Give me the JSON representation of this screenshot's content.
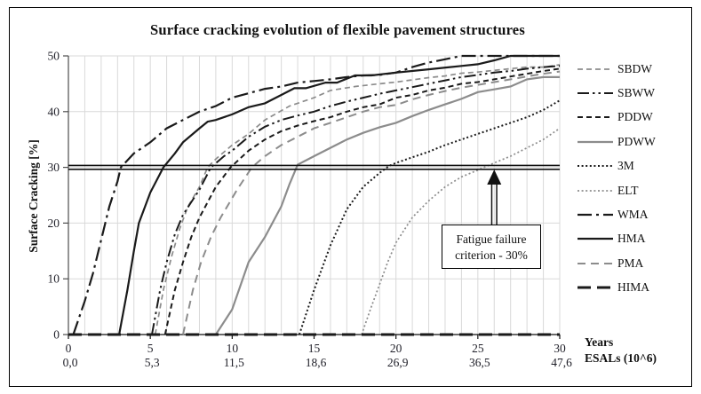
{
  "chart_data": {
    "type": "line",
    "title": "Surface cracking evolution of flexible pavement structures",
    "ylabel": "Surface Cracking [%]",
    "xlabel_primary": "Years",
    "xlabel_secondary": "ESALs (10^6)",
    "xlim": [
      0,
      30
    ],
    "ylim": [
      0,
      50
    ],
    "grid": true,
    "legend_position": "right",
    "x_ticks_years": [
      "0",
      "5",
      "10",
      "15",
      "20",
      "25",
      "30"
    ],
    "x_ticks_esals": [
      "0,0",
      "5,3",
      "11,5",
      "18,6",
      "26,9",
      "36,5",
      "47,6"
    ],
    "y_ticks": [
      "0",
      "10",
      "20",
      "30",
      "40",
      "50"
    ],
    "colors": {
      "black": "#1a1a1a",
      "gray": "#8c8c8c",
      "grid": "#d9d9d9",
      "tick_text": "#1f1f28",
      "axis": "#4d4d4d"
    },
    "criterion_line": {
      "value": 30,
      "label_line1": "Fatigue failure",
      "label_line2": "criterion - 30%",
      "arrow_x_year": 26
    },
    "series": [
      {
        "name": "SBDW",
        "color": "#8c8c8c",
        "style": "dash",
        "width": 1.7,
        "points": [
          [
            5.3,
            0
          ],
          [
            5.8,
            8
          ],
          [
            6.3,
            14
          ],
          [
            6.8,
            19
          ],
          [
            7.3,
            23
          ],
          [
            8,
            26.5
          ],
          [
            8.5,
            30
          ],
          [
            9,
            31.5
          ],
          [
            10,
            34
          ],
          [
            11,
            36
          ],
          [
            12,
            38.5
          ],
          [
            13.5,
            41
          ],
          [
            15,
            42.5
          ],
          [
            16,
            43.8
          ],
          [
            17.5,
            44.5
          ],
          [
            19,
            45
          ],
          [
            20,
            45.3
          ],
          [
            21,
            45.7
          ],
          [
            22,
            46.1
          ],
          [
            23,
            46.4
          ],
          [
            24,
            46.9
          ],
          [
            25,
            47.1
          ],
          [
            26,
            47.4
          ],
          [
            27,
            47.7
          ],
          [
            28,
            48
          ],
          [
            29,
            48
          ],
          [
            30,
            48.4
          ]
        ]
      },
      {
        "name": "SBWW",
        "color": "#1a1a1a",
        "style": "dash-dot-dot",
        "width": 2,
        "points": [
          [
            5.1,
            0
          ],
          [
            5.6,
            8
          ],
          [
            6,
            13
          ],
          [
            6.5,
            18
          ],
          [
            7,
            21.5
          ],
          [
            8,
            26
          ],
          [
            8.7,
            30
          ],
          [
            9.5,
            32
          ],
          [
            10,
            33
          ],
          [
            11,
            35.5
          ],
          [
            12,
            37.3
          ],
          [
            13,
            38.5
          ],
          [
            14,
            39.3
          ],
          [
            15,
            40
          ],
          [
            16,
            41
          ],
          [
            17,
            41.8
          ],
          [
            18,
            42.5
          ],
          [
            19,
            43.2
          ],
          [
            20,
            43.8
          ],
          [
            21,
            44.4
          ],
          [
            22,
            45
          ],
          [
            23,
            45.6
          ],
          [
            24,
            46.2
          ],
          [
            25,
            46.6
          ],
          [
            26,
            47
          ],
          [
            27,
            47.3
          ],
          [
            28,
            47.7
          ],
          [
            29,
            48
          ],
          [
            30,
            48.2
          ]
        ]
      },
      {
        "name": "PDDW",
        "color": "#1a1a1a",
        "style": "dash",
        "width": 2,
        "points": [
          [
            5.9,
            0
          ],
          [
            6.5,
            8
          ],
          [
            7,
            13
          ],
          [
            7.5,
            17.5
          ],
          [
            8,
            21
          ],
          [
            9,
            26.5
          ],
          [
            9.9,
            30
          ],
          [
            11,
            33
          ],
          [
            12,
            35
          ],
          [
            13,
            36.5
          ],
          [
            14,
            37.5
          ],
          [
            15,
            38.3
          ],
          [
            16,
            39
          ],
          [
            17,
            40
          ],
          [
            18,
            40.8
          ],
          [
            19,
            41.3
          ],
          [
            20,
            42.5
          ],
          [
            21,
            43
          ],
          [
            22,
            43.8
          ],
          [
            23,
            44.3
          ],
          [
            24,
            45
          ],
          [
            25,
            45.3
          ],
          [
            26,
            45.8
          ],
          [
            27,
            46.3
          ],
          [
            28,
            46.8
          ],
          [
            29,
            47.3
          ],
          [
            30,
            47.7
          ]
        ]
      },
      {
        "name": "PDWW",
        "color": "#8c8c8c",
        "style": "solid",
        "width": 2.2,
        "points": [
          [
            9,
            0
          ],
          [
            10,
            4.5
          ],
          [
            11,
            13
          ],
          [
            12,
            17.5
          ],
          [
            13,
            23
          ],
          [
            13.5,
            27
          ],
          [
            14,
            30.5
          ],
          [
            15,
            32
          ],
          [
            16,
            33.5
          ],
          [
            17,
            35
          ],
          [
            18,
            36.2
          ],
          [
            19,
            37.2
          ],
          [
            20,
            38
          ],
          [
            21,
            39.2
          ],
          [
            22,
            40.3
          ],
          [
            23,
            41.3
          ],
          [
            24,
            42.3
          ],
          [
            25,
            43.5
          ],
          [
            26,
            44
          ],
          [
            27,
            44.5
          ],
          [
            28,
            45.8
          ],
          [
            29,
            46.2
          ],
          [
            30,
            46.2
          ]
        ]
      },
      {
        "name": "3M",
        "color": "#1a1a1a",
        "style": "dot",
        "width": 2,
        "points": [
          [
            14.1,
            0
          ],
          [
            15,
            8
          ],
          [
            16,
            16
          ],
          [
            17,
            22.5
          ],
          [
            18,
            26.5
          ],
          [
            19,
            29
          ],
          [
            19.6,
            30.3
          ],
          [
            20,
            30.8
          ],
          [
            21,
            31.8
          ],
          [
            22,
            32.8
          ],
          [
            23,
            34
          ],
          [
            24,
            35
          ],
          [
            25,
            36
          ],
          [
            26,
            37
          ],
          [
            27,
            38
          ],
          [
            28,
            39
          ],
          [
            29,
            40.3
          ],
          [
            30,
            42
          ]
        ]
      },
      {
        "name": "ELT",
        "color": "#8c8c8c",
        "style": "dot",
        "width": 1.7,
        "points": [
          [
            17.9,
            0
          ],
          [
            18.5,
            5
          ],
          [
            19,
            9
          ],
          [
            19.5,
            13
          ],
          [
            20,
            16.5
          ],
          [
            21,
            21
          ],
          [
            22,
            24
          ],
          [
            23,
            26.5
          ],
          [
            24,
            28.3
          ],
          [
            25,
            29.5
          ],
          [
            26,
            30.8
          ],
          [
            27,
            32
          ],
          [
            28,
            33.5
          ],
          [
            29,
            35
          ],
          [
            30,
            37
          ]
        ]
      },
      {
        "name": "WMA",
        "color": "#1a1a1a",
        "style": "dash-dot",
        "width": 2.2,
        "points": [
          [
            0.3,
            0
          ],
          [
            1,
            6
          ],
          [
            1.5,
            11
          ],
          [
            2,
            17
          ],
          [
            2.5,
            23
          ],
          [
            3,
            27.5
          ],
          [
            3.2,
            30
          ],
          [
            4,
            32.5
          ],
          [
            5,
            34.5
          ],
          [
            6,
            37
          ],
          [
            7,
            38.5
          ],
          [
            8,
            40
          ],
          [
            9,
            41
          ],
          [
            10,
            42.5
          ],
          [
            11,
            43.3
          ],
          [
            12,
            44.1
          ],
          [
            13,
            44.5
          ],
          [
            14,
            45.2
          ],
          [
            15,
            45.5
          ],
          [
            16,
            45.8
          ],
          [
            17,
            46.2
          ],
          [
            18,
            46.5
          ],
          [
            19,
            46.6
          ],
          [
            20,
            47
          ],
          [
            21,
            48
          ],
          [
            22,
            48.8
          ],
          [
            23,
            49.4
          ],
          [
            24,
            50
          ],
          [
            30,
            50
          ]
        ]
      },
      {
        "name": "HMA",
        "color": "#1a1a1a",
        "style": "solid",
        "width": 2.2,
        "points": [
          [
            3.1,
            0
          ],
          [
            3.6,
            8
          ],
          [
            4,
            15
          ],
          [
            4.3,
            20
          ],
          [
            5,
            25.5
          ],
          [
            5.8,
            30
          ],
          [
            6.5,
            32.5
          ],
          [
            7,
            34.5
          ],
          [
            8,
            37
          ],
          [
            8.5,
            38.2
          ],
          [
            9,
            38.5
          ],
          [
            10,
            39.5
          ],
          [
            11,
            40.8
          ],
          [
            12,
            41.5
          ],
          [
            13,
            43
          ],
          [
            13.8,
            44.2
          ],
          [
            14.5,
            44.2
          ],
          [
            15.7,
            45.2
          ],
          [
            16.4,
            45.2
          ],
          [
            17.5,
            46.5
          ],
          [
            18.5,
            46.5
          ],
          [
            20,
            47
          ],
          [
            22,
            47.6
          ],
          [
            24,
            48.2
          ],
          [
            25,
            48.5
          ],
          [
            26,
            49.2
          ],
          [
            27,
            50
          ],
          [
            30,
            50
          ]
        ]
      },
      {
        "name": "PMA",
        "color": "#8c8c8c",
        "style": "med-dash",
        "width": 2,
        "points": [
          [
            7,
            0
          ],
          [
            7.6,
            8
          ],
          [
            8.1,
            13
          ],
          [
            8.7,
            17.5
          ],
          [
            9.3,
            21
          ],
          [
            10.3,
            26
          ],
          [
            11.2,
            30
          ],
          [
            12,
            32
          ],
          [
            13,
            34
          ],
          [
            14,
            35.5
          ],
          [
            15,
            37
          ],
          [
            16,
            38
          ],
          [
            17,
            39
          ],
          [
            18,
            40
          ],
          [
            19,
            40.8
          ],
          [
            20,
            41.2
          ],
          [
            21,
            42.2
          ],
          [
            22,
            43
          ],
          [
            23,
            43.7
          ],
          [
            24,
            44.3
          ],
          [
            25,
            44.8
          ],
          [
            26,
            45.3
          ],
          [
            27,
            45.8
          ],
          [
            28,
            46.3
          ],
          [
            29,
            46.8
          ],
          [
            30,
            47.2
          ]
        ]
      },
      {
        "name": "HIMA",
        "color": "#1a1a1a",
        "style": "long-dash",
        "width": 3,
        "points": [
          [
            0,
            0
          ],
          [
            30,
            0
          ]
        ]
      }
    ]
  }
}
